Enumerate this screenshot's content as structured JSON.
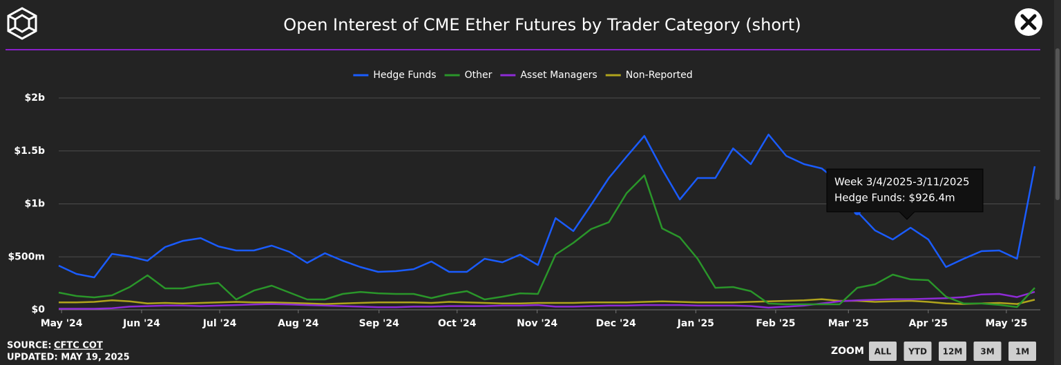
{
  "chart_data": {
    "type": "line",
    "title": "Open Interest of CME Ether Futures by Trader Category (short)",
    "categories": [
      null,
      null,
      null,
      null,
      null,
      null,
      null,
      null,
      null,
      null,
      null,
      null,
      null,
      null,
      null,
      null,
      null,
      null,
      null,
      null,
      null,
      null,
      null,
      null,
      null,
      null,
      null,
      null,
      null,
      null,
      null,
      null,
      null,
      null,
      null,
      null,
      null,
      null,
      null,
      null,
      null,
      null,
      null,
      null,
      null,
      null,
      null,
      null,
      null,
      null,
      null,
      null,
      null,
      null,
      null,
      null
    ],
    "xlim": [
      0,
      55
    ],
    "xticks": [
      {
        "value": 0.16,
        "label": "May '24"
      },
      {
        "value": 4.67,
        "label": "Jun '24"
      },
      {
        "value": 9.07,
        "label": "Jul '24"
      },
      {
        "value": 13.5,
        "label": "Aug '24"
      },
      {
        "value": 18.05,
        "label": "Sep '24"
      },
      {
        "value": 22.45,
        "label": "Oct '24"
      },
      {
        "value": 26.96,
        "label": "Nov '24"
      },
      {
        "value": 31.4,
        "label": "Dec '24"
      },
      {
        "value": 35.9,
        "label": "Jan '25"
      },
      {
        "value": 40.4,
        "label": "Feb '25"
      },
      {
        "value": 44.5,
        "label": "Mar '25"
      },
      {
        "value": 49.0,
        "label": "Apr '25"
      },
      {
        "value": 53.4,
        "label": "May '25"
      }
    ],
    "ylim": [
      0,
      2000
    ],
    "yticks": [
      {
        "value": 0,
        "label": "$0"
      },
      {
        "value": 500,
        "label": "$500m"
      },
      {
        "value": 1000,
        "label": "$1b"
      },
      {
        "value": 1500,
        "label": "$1.5b"
      },
      {
        "value": 2000,
        "label": "$2b"
      }
    ],
    "grid": true,
    "legend": "top",
    "series": [
      {
        "name": "Hedge Funds",
        "color": "#1a5cff",
        "values": [
          417,
          339,
          306,
          528,
          502,
          463,
          593,
          651,
          677,
          599,
          560,
          560,
          606,
          547,
          443,
          534,
          463,
          404,
          358,
          365,
          384,
          456,
          358,
          358,
          482,
          449,
          521,
          423,
          866,
          743,
          990,
          1244,
          1446,
          1642,
          1329,
          1042,
          1244,
          1244,
          1524,
          1375,
          1655,
          1453,
          1375,
          1335,
          1199,
          926.4,
          749,
          664,
          775,
          664,
          404,
          482,
          554,
          560,
          482,
          1355
        ]
      },
      {
        "name": "Other",
        "color": "#2a962a",
        "values": [
          163,
          130,
          117,
          137,
          215,
          326,
          202,
          202,
          235,
          254,
          98,
          182,
          228,
          163,
          98,
          98,
          150,
          169,
          156,
          150,
          150,
          111,
          150,
          176,
          98,
          124,
          156,
          150,
          521,
          632,
          762,
          827,
          1101,
          1270,
          769,
          684,
          482,
          208,
          215,
          176,
          59,
          52,
          52,
          52,
          52,
          208,
          241,
          332,
          287,
          280,
          124,
          59,
          59,
          46,
          26,
          208
        ]
      },
      {
        "name": "Asset Managers",
        "color": "#8e2bd6",
        "values": [
          10,
          10,
          10,
          15,
          30,
          35,
          40,
          40,
          35,
          40,
          45,
          50,
          55,
          50,
          45,
          40,
          35,
          30,
          25,
          25,
          30,
          30,
          35,
          35,
          35,
          40,
          40,
          45,
          30,
          30,
          35,
          40,
          40,
          45,
          45,
          45,
          40,
          40,
          40,
          35,
          20,
          30,
          40,
          60,
          80,
          90,
          95,
          100,
          100,
          105,
          110,
          120,
          145,
          150,
          120,
          170
        ]
      },
      {
        "name": "Non-Reported",
        "color": "#b0a41c",
        "values": [
          70,
          70,
          75,
          90,
          80,
          60,
          65,
          60,
          65,
          70,
          75,
          70,
          70,
          65,
          60,
          55,
          60,
          65,
          70,
          70,
          70,
          65,
          75,
          70,
          65,
          60,
          60,
          65,
          65,
          65,
          70,
          70,
          70,
          75,
          80,
          75,
          70,
          70,
          70,
          75,
          80,
          85,
          90,
          100,
          85,
          85,
          75,
          80,
          85,
          75,
          60,
          55,
          60,
          65,
          55,
          95
        ]
      }
    ],
    "tooltip": {
      "title": "Week 3/4/2025-3/11/2025",
      "label": "Hedge Funds: $926.4m"
    }
  },
  "footer": {
    "source_label": "SOURCE:",
    "source": "CFTC COT",
    "updated": "UPDATED: MAY 19, 2025"
  },
  "zoom": {
    "label": "ZOOM",
    "buttons": [
      "ALL",
      "YTD",
      "12M",
      "3M",
      "1M"
    ]
  }
}
